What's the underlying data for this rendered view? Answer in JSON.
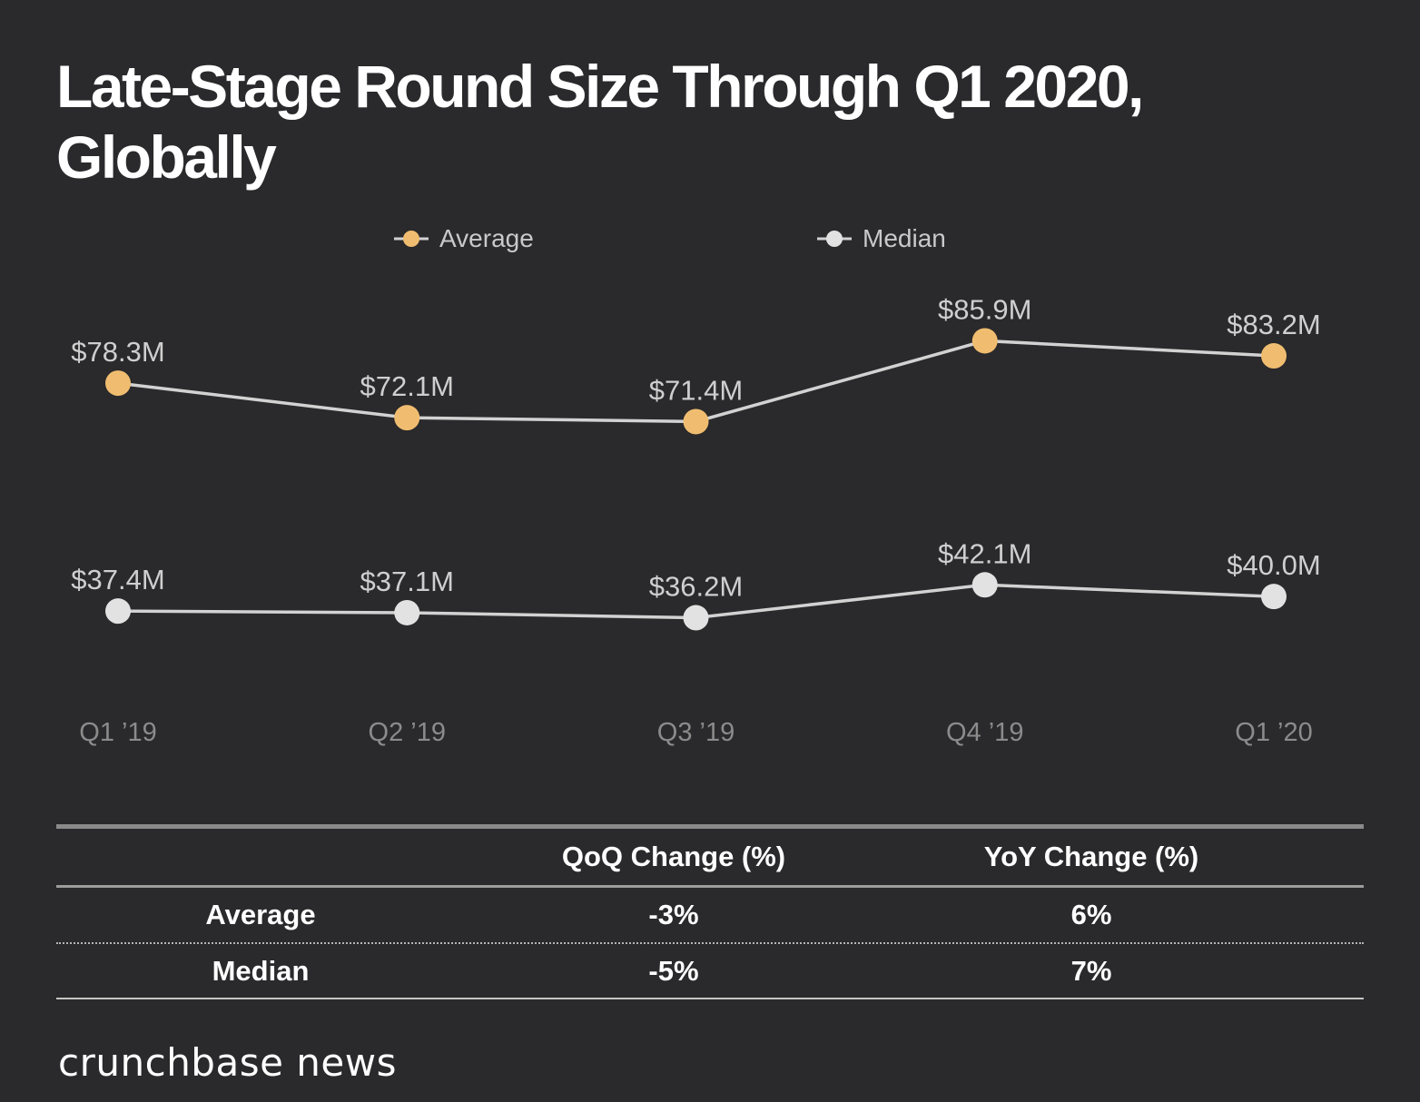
{
  "page": {
    "background": "#2a292b"
  },
  "title": {
    "line1": "Late-Stage Round Size Through Q1 2020,",
    "line2": "Globally"
  },
  "legend": [
    {
      "label": "Average",
      "color": "#f0bd70"
    },
    {
      "label": "Median",
      "color": "#e2e2e2"
    }
  ],
  "chart_data": {
    "type": "line",
    "title": "Late-Stage Round Size Through Q1 2020, Globally",
    "categories": [
      "Q1 ’19",
      "Q2 ’19",
      "Q3 ’19",
      "Q4 ’19",
      "Q1 ’20"
    ],
    "series": [
      {
        "name": "Average",
        "color": "#f0bd70",
        "values": [
          78.3,
          72.1,
          71.4,
          85.9,
          83.2
        ],
        "labels": [
          "$78.3M",
          "$72.1M",
          "$71.4M",
          "$85.9M",
          "$83.2M"
        ]
      },
      {
        "name": "Median",
        "color": "#e2e2e2",
        "values": [
          37.4,
          37.1,
          36.2,
          42.1,
          40.0
        ],
        "labels": [
          "$37.4M",
          "$37.1M",
          "$36.2M",
          "$42.1M",
          "$40.0M"
        ]
      }
    ],
    "unit": "$M",
    "xlabel": "",
    "ylabel": "",
    "grid": false,
    "legend_position": "top",
    "line_color": "#d2d2d2",
    "data_label_color": "#cfcfcf",
    "axis_label_color": "#8b8b8b"
  },
  "table": {
    "headers": [
      "",
      "QoQ Change (%)",
      "YoY Change (%)"
    ],
    "rows": [
      {
        "label": "Average",
        "qoq": "-3%",
        "yoy": "6%"
      },
      {
        "label": "Median",
        "qoq": "-5%",
        "yoy": "7%"
      }
    ]
  },
  "footer": {
    "brand": "crunchbase news"
  }
}
